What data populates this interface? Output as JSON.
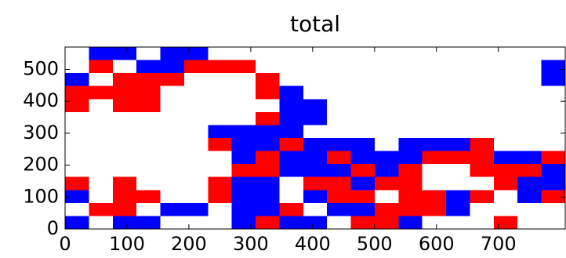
{
  "chart_data": {
    "type": "image",
    "title": "total",
    "xlim": [
      0,
      808
    ],
    "ylim": [
      0,
      570
    ],
    "xticks": [
      0,
      100,
      200,
      300,
      400,
      500,
      600,
      700
    ],
    "yticks": [
      0,
      100,
      200,
      300,
      400,
      500
    ],
    "colors": [
      "#0000ff",
      "#ffffff",
      "#ff0000"
    ],
    "z": [
      [
        0,
        -1,
        -1,
        0,
        -1,
        -1,
        0,
        0,
        0,
        0,
        0,
        0,
        0,
        0,
        0,
        0,
        0,
        0,
        0,
        0,
        0
      ],
      [
        0,
        1,
        0,
        -1,
        -1,
        1,
        1,
        1,
        0,
        0,
        0,
        0,
        0,
        0,
        0,
        0,
        0,
        0,
        0,
        0,
        -1
      ],
      [
        -1,
        0,
        1,
        1,
        1,
        0,
        0,
        0,
        1,
        0,
        0,
        0,
        0,
        0,
        0,
        0,
        0,
        0,
        0,
        0,
        -1
      ],
      [
        1,
        1,
        1,
        1,
        0,
        0,
        0,
        0,
        1,
        -1,
        0,
        0,
        0,
        0,
        0,
        0,
        0,
        0,
        0,
        0,
        0
      ],
      [
        1,
        0,
        1,
        1,
        0,
        0,
        0,
        0,
        0,
        -1,
        -1,
        0,
        0,
        0,
        0,
        0,
        0,
        0,
        0,
        0,
        0
      ],
      [
        0,
        0,
        0,
        0,
        0,
        0,
        0,
        0,
        1,
        -1,
        -1,
        0,
        0,
        0,
        0,
        0,
        0,
        0,
        0,
        0,
        0
      ],
      [
        0,
        0,
        0,
        0,
        0,
        0,
        -1,
        -1,
        -1,
        -1,
        0,
        0,
        0,
        0,
        0,
        0,
        0,
        0,
        0,
        0,
        0
      ],
      [
        0,
        0,
        0,
        0,
        0,
        0,
        1,
        -1,
        -1,
        1,
        -1,
        -1,
        -1,
        0,
        -1,
        -1,
        -1,
        1,
        0,
        0,
        0
      ],
      [
        0,
        0,
        0,
        0,
        0,
        0,
        0,
        -1,
        1,
        -1,
        -1,
        1,
        -1,
        -1,
        -1,
        1,
        1,
        1,
        -1,
        -1,
        1
      ],
      [
        0,
        0,
        0,
        0,
        0,
        0,
        0,
        1,
        1,
        -1,
        -1,
        -1,
        1,
        -1,
        1,
        0,
        0,
        1,
        1,
        1,
        -1
      ],
      [
        1,
        0,
        1,
        0,
        0,
        0,
        1,
        -1,
        -1,
        0,
        1,
        1,
        -1,
        1,
        1,
        0,
        0,
        0,
        1,
        -1,
        -1
      ],
      [
        -1,
        0,
        1,
        1,
        0,
        0,
        1,
        -1,
        -1,
        0,
        -1,
        1,
        1,
        0,
        1,
        1,
        -1,
        1,
        0,
        -1,
        1
      ],
      [
        0,
        1,
        1,
        0,
        -1,
        -1,
        0,
        -1,
        -1,
        1,
        0,
        -1,
        -1,
        1,
        1,
        1,
        -1,
        0,
        0,
        0,
        0
      ],
      [
        -1,
        0,
        -1,
        -1,
        0,
        0,
        0,
        -1,
        1,
        -1,
        -1,
        0,
        1,
        1,
        -1,
        0,
        0,
        0,
        1,
        0,
        0
      ]
    ]
  }
}
